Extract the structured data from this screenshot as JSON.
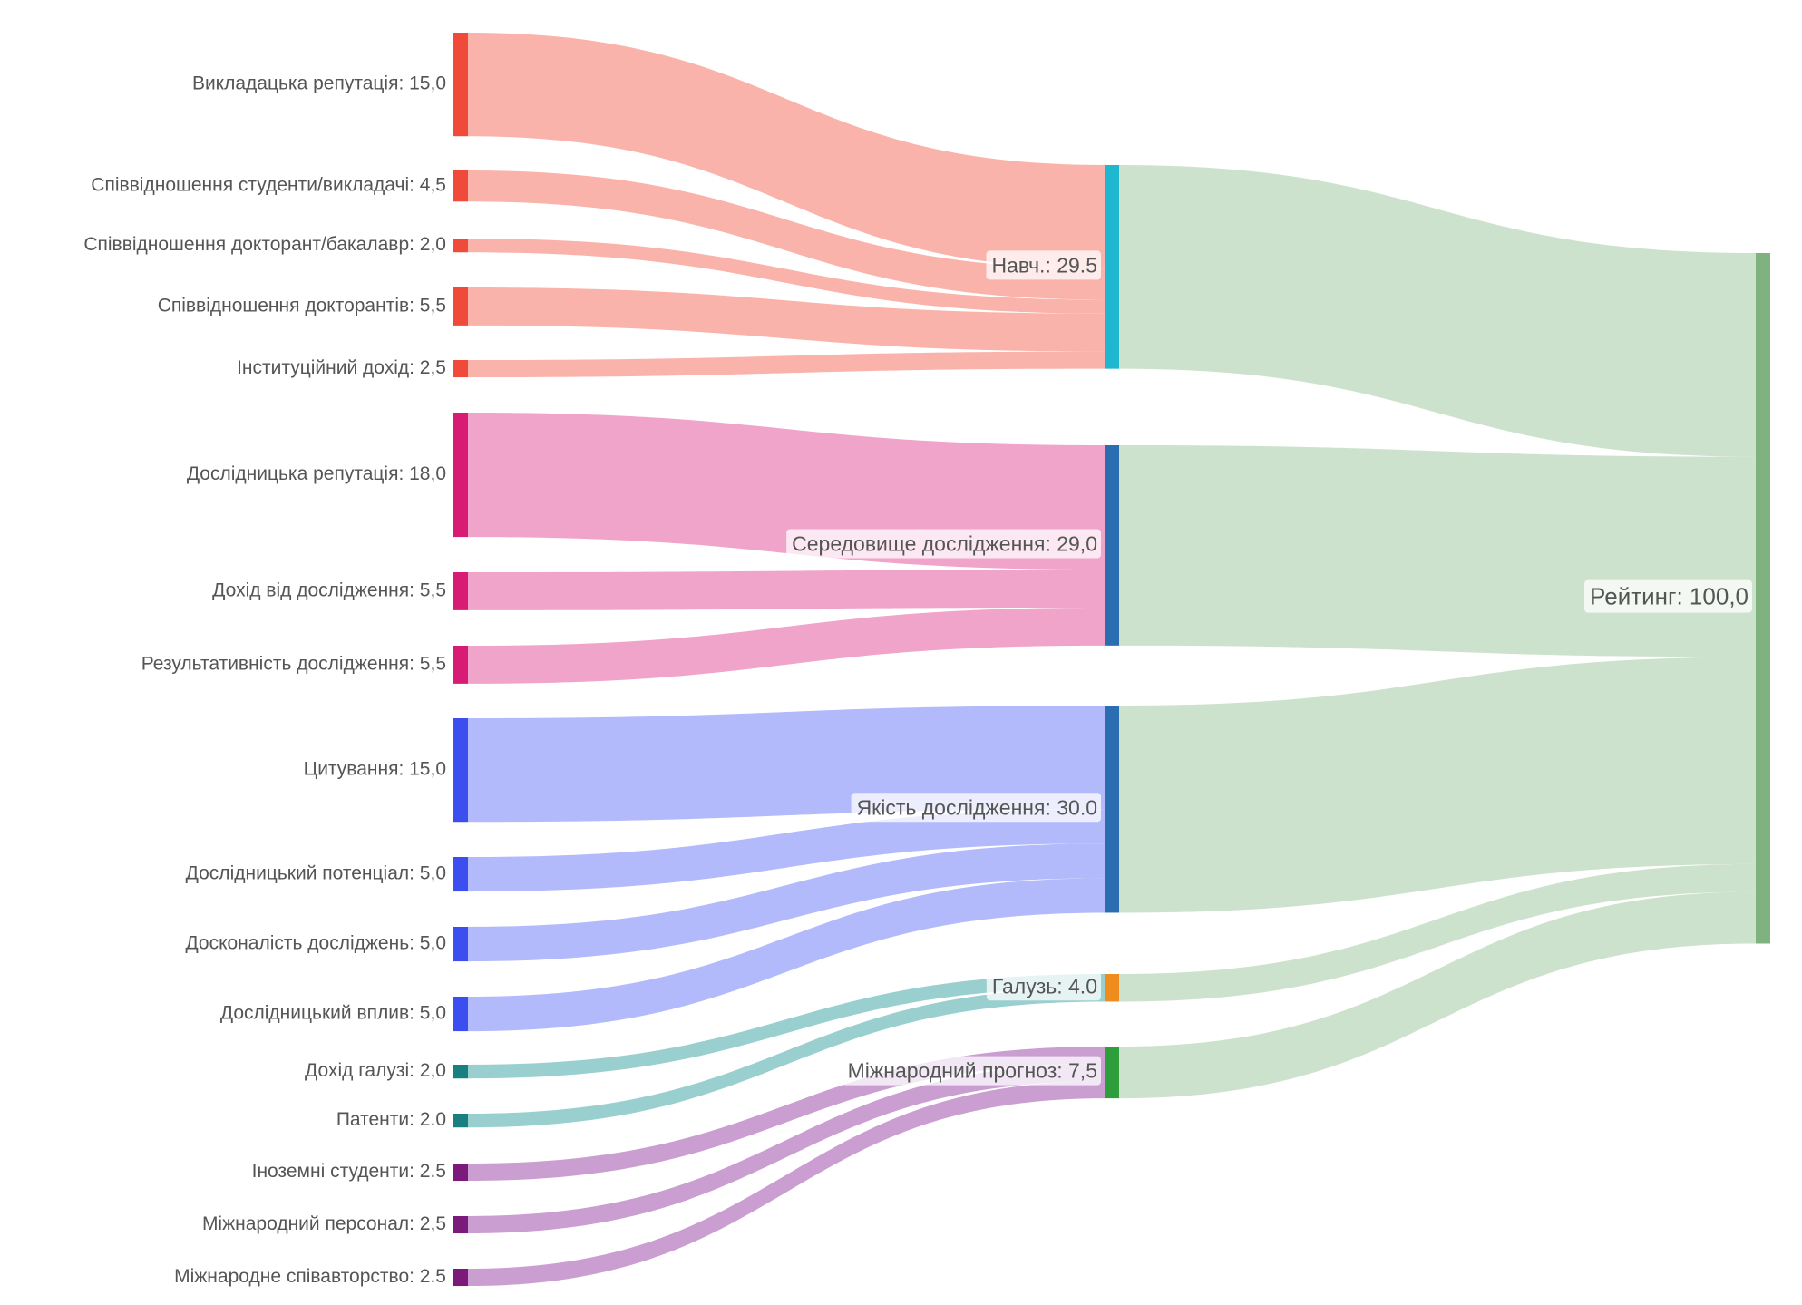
{
  "chart_data": {
    "type": "sankey",
    "nodes": [
      {
        "label": "Викладацька репутація: 15,0",
        "value": 15,
        "color": "#f04a3a",
        "link_color": "#f9aba2"
      },
      {
        "label": "Співвідношення студенти/викладачі: 4,5",
        "value": 4.5,
        "color": "#f04a3a",
        "link_color": "#f9aba2"
      },
      {
        "label": "Співвідношення докторант/бакалавр: 2,0",
        "value": 2,
        "color": "#f04a3a",
        "link_color": "#f9aba2"
      },
      {
        "label": "Співвідношення докторантів: 5,5",
        "value": 5.5,
        "color": "#f04a3a",
        "link_color": "#f9aba2"
      },
      {
        "label": "Інституційний дохід: 2,5",
        "value": 2.5,
        "color": "#f04a3a",
        "link_color": "#f9aba2"
      },
      {
        "label": "Дослідницька репутація: 18,0",
        "value": 18,
        "color": "#d81b74",
        "link_color": "#f09ac4"
      },
      {
        "label": "Дохід від дослідження: 5,5",
        "value": 5.5,
        "color": "#d81b74",
        "link_color": "#f09ac4"
      },
      {
        "label": "Результативність дослідження: 5,5",
        "value": 5.5,
        "color": "#d81b74",
        "link_color": "#f09ac4"
      },
      {
        "label": "Цитування: 15,0",
        "value": 15,
        "color": "#3d4ef0",
        "link_color": "#aab2fb"
      },
      {
        "label": "Дослідницький потенціал:  5,0",
        "value": 5,
        "color": "#3d4ef0",
        "link_color": "#aab2fb"
      },
      {
        "label": "Досконалість досліджень: 5,0",
        "value": 5,
        "color": "#3d4ef0",
        "link_color": "#aab2fb"
      },
      {
        "label": "Дослідницький вплив: 5,0",
        "value": 5,
        "color": "#3d4ef0",
        "link_color": "#aab2fb"
      },
      {
        "label": "Дохід галузі: 2,0",
        "value": 2,
        "color": "#1a7f7f",
        "link_color": "#8fcaca"
      },
      {
        "label": "Патенти: 2.0",
        "value": 2,
        "color": "#1a7f7f",
        "link_color": "#8fcaca"
      },
      {
        "label": "Іноземні студенти: 2.5",
        "value": 2.5,
        "color": "#7b1a7b",
        "link_color": "#c594cc"
      },
      {
        "label": "Міжнародний персонал: 2,5",
        "value": 2.5,
        "color": "#7b1a7b",
        "link_color": "#c594cc"
      },
      {
        "label": "Міжнародне співавторство: 2.5",
        "value": 2.5,
        "color": "#7b1a7b",
        "link_color": "#c594cc"
      },
      {
        "label": "Навч.: 29.5",
        "value": 29.5,
        "color": "#1fb6cf",
        "link_color": "#c8dfc8"
      },
      {
        "label": "Середовище дослідження: 29,0",
        "value": 29,
        "color": "#2a6db0",
        "link_color": "#c8dfc8"
      },
      {
        "label": "Якість дослідження: 30.0",
        "value": 30,
        "color": "#2a6db0",
        "link_color": "#c8dfc8"
      },
      {
        "label": "Галузь: 4.0",
        "value": 4,
        "color": "#f08c1e",
        "link_color": "#c8dfc8"
      },
      {
        "label": "Міжнародний прогноз: 7,5",
        "value": 7.5,
        "color": "#2e9e3a",
        "link_color": "#c8dfc8"
      },
      {
        "label": "Рейтинг: 100,0",
        "value": 100,
        "color": "#7fb27f"
      }
    ],
    "links": [
      {
        "source": 0,
        "target": 17
      },
      {
        "source": 1,
        "target": 17
      },
      {
        "source": 2,
        "target": 17
      },
      {
        "source": 3,
        "target": 17
      },
      {
        "source": 4,
        "target": 17
      },
      {
        "source": 5,
        "target": 18
      },
      {
        "source": 6,
        "target": 18
      },
      {
        "source": 7,
        "target": 18
      },
      {
        "source": 8,
        "target": 19
      },
      {
        "source": 9,
        "target": 19
      },
      {
        "source": 10,
        "target": 19
      },
      {
        "source": 11,
        "target": 19
      },
      {
        "source": 12,
        "target": 20
      },
      {
        "source": 13,
        "target": 20
      },
      {
        "source": 14,
        "target": 21
      },
      {
        "source": 15,
        "target": 21
      },
      {
        "source": 16,
        "target": 21
      },
      {
        "source": 17,
        "target": 22
      },
      {
        "source": 18,
        "target": 22
      },
      {
        "source": 19,
        "target": 22
      },
      {
        "source": 20,
        "target": 22
      },
      {
        "source": 21,
        "target": 22
      }
    ]
  }
}
